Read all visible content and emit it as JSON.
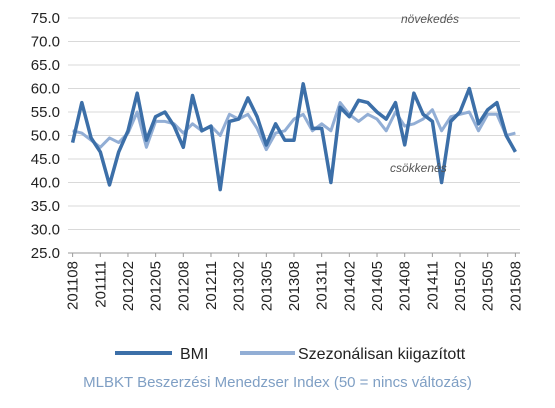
{
  "chart_data": {
    "type": "line",
    "ylim": [
      25,
      75
    ],
    "y_ticks": [
      "75.0",
      "70.0",
      "65.0",
      "60.0",
      "55.0",
      "50.0",
      "45.0",
      "40.0",
      "35.0",
      "30.0",
      "25.0"
    ],
    "x": [
      "201108",
      "201109",
      "201110",
      "201111",
      "201112",
      "201201",
      "201202",
      "201203",
      "201204",
      "201205",
      "201206",
      "201207",
      "201208",
      "201209",
      "201210",
      "201211",
      "201212",
      "201301",
      "201302",
      "201303",
      "201304",
      "201305",
      "201306",
      "201307",
      "201308",
      "201309",
      "201310",
      "201311",
      "201312",
      "201401",
      "201402",
      "201403",
      "201404",
      "201405",
      "201406",
      "201407",
      "201408",
      "201409",
      "201410",
      "201411",
      "201412",
      "201501",
      "201502",
      "201503",
      "201504",
      "201505",
      "201506",
      "201507",
      "201508"
    ],
    "x_tick_labels": [
      "201108",
      "201111",
      "201202",
      "201205",
      "201208",
      "201211",
      "201302",
      "201305",
      "201308",
      "201311",
      "201402",
      "201405",
      "201408",
      "201411",
      "201502",
      "201505",
      "201508"
    ],
    "grid": "horizontal",
    "legend_position": "bottom",
    "annotations": {
      "top": "növekedés",
      "middle": "csökkenés"
    },
    "series": [
      {
        "name": "BMI",
        "color": "#3c6fa8",
        "values": [
          48.5,
          57.0,
          49.5,
          46.5,
          39.5,
          46.5,
          51.0,
          59.0,
          49.0,
          54.0,
          55.0,
          52.0,
          47.5,
          58.5,
          51.0,
          52.0,
          38.5,
          53.0,
          53.5,
          58.0,
          54.0,
          48.0,
          52.5,
          49.0,
          49.0,
          61.0,
          51.5,
          51.5,
          40.0,
          56.0,
          54.0,
          57.5,
          57.0,
          55.0,
          53.5,
          57.0,
          48.0,
          59.0,
          54.5,
          53.0,
          40.0,
          53.0,
          55.0,
          60.0,
          52.5,
          55.5,
          57.0,
          50.0,
          46.5
        ]
      },
      {
        "name": "Szezonálisan kiigazított",
        "color": "#92aed5",
        "values": [
          51.0,
          50.5,
          49.0,
          47.5,
          49.5,
          48.5,
          50.5,
          55.0,
          47.5,
          53.0,
          53.0,
          52.5,
          50.5,
          52.5,
          51.0,
          52.0,
          50.0,
          54.5,
          53.5,
          54.5,
          51.5,
          47.0,
          50.5,
          51.0,
          53.5,
          54.5,
          51.0,
          52.5,
          51.0,
          57.0,
          54.5,
          53.0,
          54.5,
          53.5,
          51.0,
          55.0,
          52.0,
          52.5,
          53.5,
          55.5,
          51.0,
          54.0,
          54.5,
          55.0,
          51.0,
          54.5,
          54.5,
          50.0,
          50.5
        ]
      }
    ],
    "caption": "MLBKT Beszerzési Menedzser Index (50 = nincs változás)"
  }
}
